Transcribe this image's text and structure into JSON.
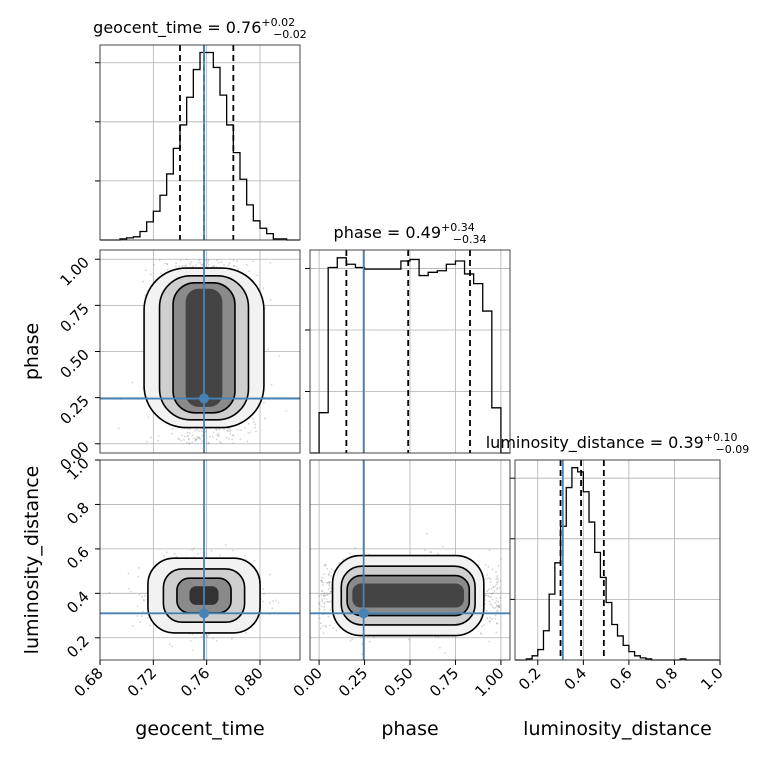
{
  "colors": {
    "truth": "#4682b4",
    "hist": "#000000"
  },
  "chart_data": {
    "type": "corner",
    "parameters": [
      "geocent_time",
      "phase",
      "luminosity_distance"
    ],
    "titles": [
      {
        "param": "geocent_time",
        "name": "geocent_time",
        "median": "0.76",
        "upper": "+0.02",
        "lower": "−0.02"
      },
      {
        "param": "phase",
        "name": "phase",
        "median": "0.49",
        "upper": "+0.34",
        "lower": "−0.34"
      },
      {
        "param": "luminosity_distance",
        "name": "luminosity_distance",
        "median": "0.39",
        "upper": "+0.10",
        "lower": "−0.09"
      }
    ],
    "ranges": {
      "geocent_time": [
        0.68,
        0.83
      ],
      "phase": [
        -0.05,
        1.05
      ],
      "luminosity_distance": [
        0.1,
        1.0
      ]
    },
    "ticks": {
      "geocent_time": [
        "0.68",
        "0.72",
        "0.76",
        "0.80"
      ],
      "phase": [
        "0.00",
        "0.25",
        "0.50",
        "0.75",
        "1.00"
      ],
      "luminosity_distance": [
        "0.2",
        "0.4",
        "0.6",
        "0.8",
        "1.0"
      ]
    },
    "ytick_labels": {
      "phase": [
        "0.00",
        "0.25",
        "0.50",
        "0.75",
        "1.00"
      ],
      "luminosity_distance": [
        "0.2",
        "0.4",
        "0.6",
        "0.8",
        "1.0"
      ]
    },
    "truths": {
      "geocent_time": 0.758,
      "phase": 0.245,
      "luminosity_distance": 0.31
    },
    "quantiles": {
      "geocent_time": [
        0.74,
        0.758,
        0.78
      ],
      "phase": [
        0.15,
        0.49,
        0.83
      ],
      "luminosity_distance": [
        0.3,
        0.39,
        0.49
      ]
    },
    "histograms": {
      "geocent_time": {
        "edges": [
          0.68,
          0.685,
          0.69,
          0.695,
          0.7,
          0.705,
          0.71,
          0.715,
          0.72,
          0.725,
          0.73,
          0.735,
          0.74,
          0.745,
          0.75,
          0.755,
          0.76,
          0.765,
          0.77,
          0.775,
          0.78,
          0.785,
          0.79,
          0.795,
          0.8,
          0.805,
          0.81,
          0.815,
          0.82,
          0.825,
          0.83
        ],
        "counts": [
          0,
          0,
          0,
          1,
          2,
          3,
          8,
          17,
          27,
          42,
          62,
          86,
          108,
          134,
          160,
          176,
          176,
          162,
          136,
          108,
          82,
          57,
          33,
          18,
          11,
          6,
          1,
          1,
          0,
          0
        ]
      },
      "phase": {
        "edges": [
          -0.05,
          0.0,
          0.05,
          0.1,
          0.15,
          0.2,
          0.25,
          0.3,
          0.35,
          0.4,
          0.45,
          0.5,
          0.55,
          0.6,
          0.65,
          0.7,
          0.75,
          0.8,
          0.85,
          0.9,
          0.95,
          1.0,
          1.05
        ],
        "counts": [
          0,
          25,
          115,
          121,
          117,
          115,
          114,
          114,
          114,
          114,
          119,
          120,
          110,
          112,
          113,
          117,
          119,
          111,
          105,
          88,
          28,
          0
        ]
      },
      "luminosity_distance": {
        "edges": [
          0.1,
          0.125,
          0.15,
          0.175,
          0.2,
          0.225,
          0.25,
          0.275,
          0.3,
          0.325,
          0.35,
          0.375,
          0.4,
          0.425,
          0.45,
          0.475,
          0.5,
          0.525,
          0.55,
          0.575,
          0.6,
          0.625,
          0.65,
          0.675,
          0.7,
          0.725,
          0.75,
          0.775,
          0.8,
          0.825,
          0.85,
          0.875,
          0.9,
          0.925,
          0.95,
          0.975,
          1.0
        ],
        "counts": [
          0,
          0,
          1,
          4,
          10,
          28,
          63,
          93,
          128,
          165,
          184,
          180,
          161,
          132,
          103,
          79,
          55,
          34,
          23,
          14,
          8,
          4,
          2,
          1,
          0,
          0,
          0,
          0,
          0,
          1,
          0,
          0,
          0,
          0,
          0,
          0
        ]
      }
    },
    "contours": {
      "phase_vs_geocent_time": {
        "xparam": "geocent_time",
        "yparam": "phase",
        "center": [
          0.758,
          0.52
        ],
        "sigma": [
          0.0145,
          0.32
        ],
        "kind": "uniform-y"
      },
      "luminosity_distance_vs_geocent_time": {
        "xparam": "geocent_time",
        "yparam": "luminosity_distance",
        "center": [
          0.758,
          0.39
        ],
        "sigma": [
          0.0145,
          0.06
        ],
        "kind": "gaussian"
      },
      "luminosity_distance_vs_phase": {
        "xparam": "phase",
        "yparam": "luminosity_distance",
        "center": [
          0.49,
          0.39
        ],
        "sigma": [
          0.32,
          0.06
        ],
        "kind": "uniform-x"
      }
    },
    "axis_labels": {
      "x": [
        "geocent_time",
        "phase",
        "luminosity_distance"
      ],
      "y": [
        "phase",
        "luminosity_distance"
      ]
    }
  }
}
